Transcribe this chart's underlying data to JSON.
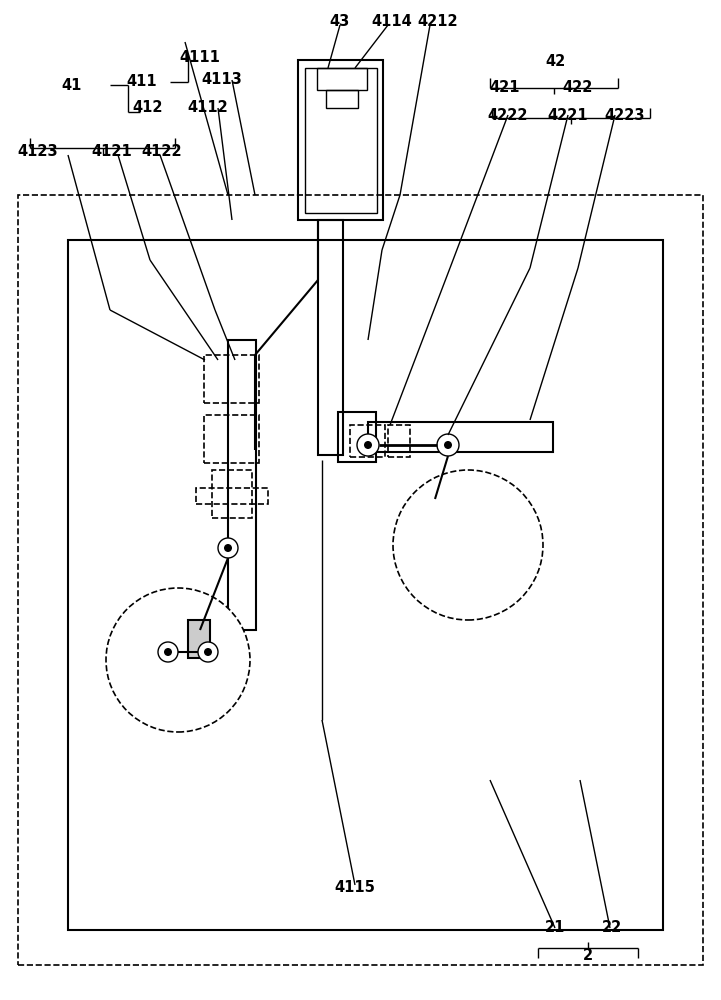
{
  "fig_width": 7.21,
  "fig_height": 10.0,
  "dpi": 100,
  "bg_color": "#ffffff"
}
